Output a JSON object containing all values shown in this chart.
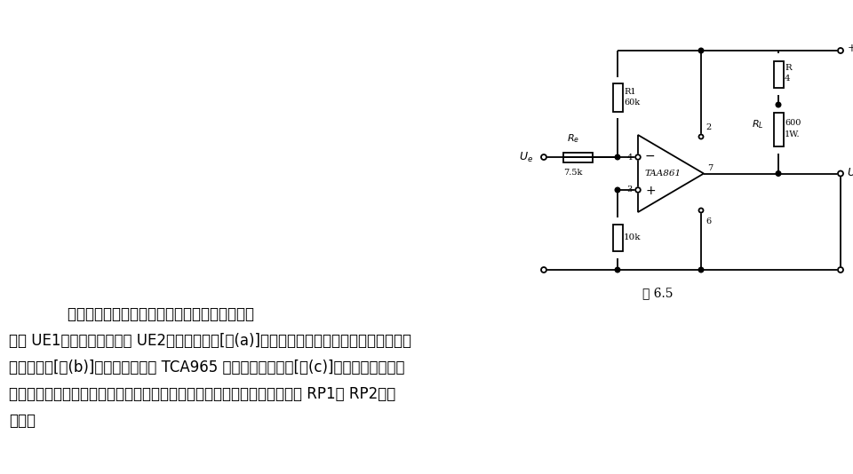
{
  "bg_color": "#ffffff",
  "line_color": "#000000",
  "fig_caption": "图 6.5",
  "para_line1": "    施密特触发器是一种双稳电路，即当输入超过某",
  "para_line2": "一值 UE1时翻转，到另一值 UE2时又恢复原态[图(a)]，故可将任意输入波形整形成具有一定",
  "para_line3": "幅值的方波[图(b)]。采用集成电路 TCA965 即可实现这一功能[图(c)]。与采用单个晶体",
  "para_line4": "管或运算放大器的施密特触发器比较，优点是阈值和滞环可以分别由电位器 RP1和 RP2独立",
  "para_line5": "调节。"
}
